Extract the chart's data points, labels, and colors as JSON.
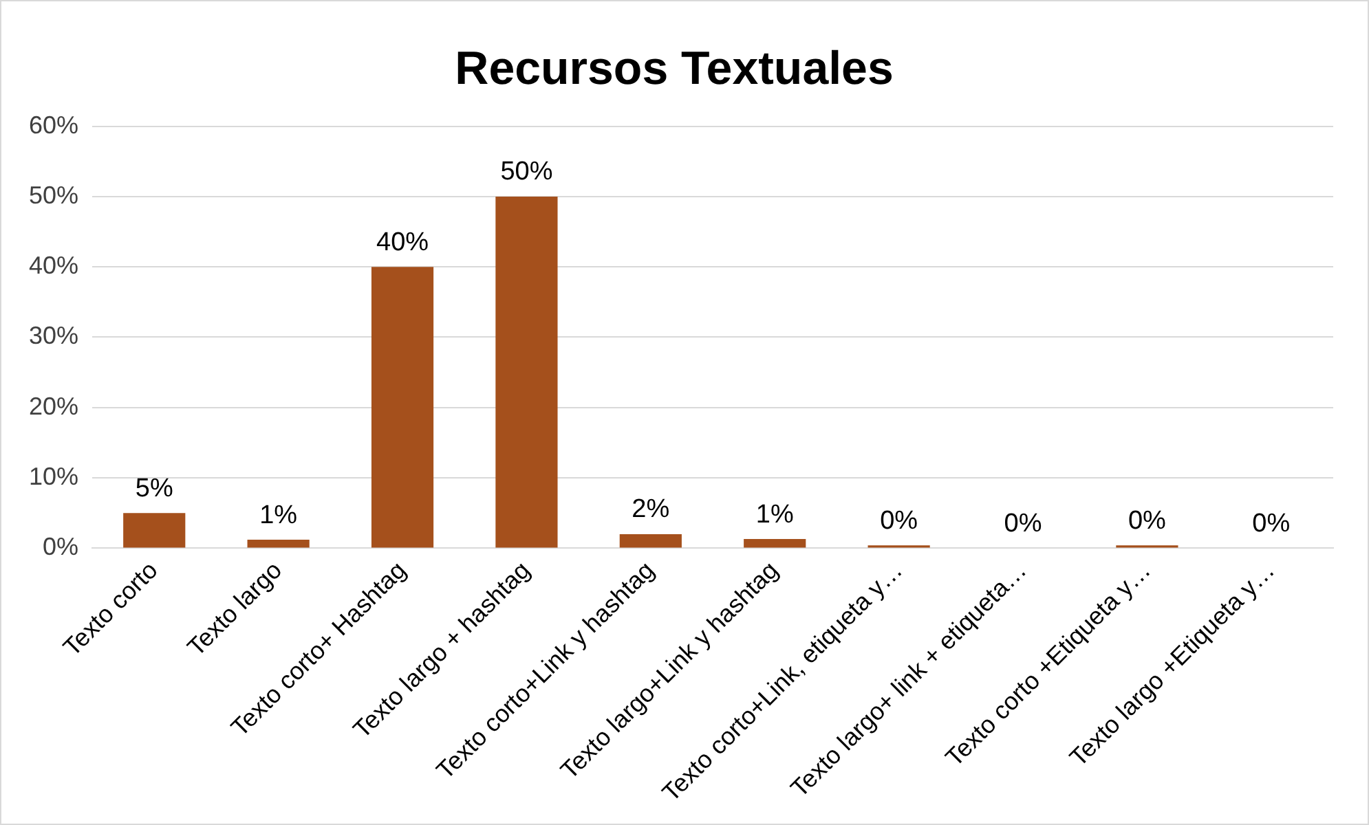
{
  "chart_data": {
    "type": "bar",
    "title": "Recursos Textuales",
    "categories": [
      "Texto corto",
      "Texto largo",
      "Texto corto+ Hashtag",
      "Texto largo + hashtag",
      "Texto corto+Link y hashtag",
      "Texto largo+Link y hashtag",
      "Texto corto+Link, etiqueta y…",
      "Texto largo+ link + etiqueta…",
      "Texto corto +Etiqueta y…",
      "Texto largo +Etiqueta y…"
    ],
    "values": [
      5,
      1.2,
      40,
      50,
      2,
      1.3,
      0.4,
      0,
      0.4,
      0
    ],
    "value_labels": [
      "5%",
      "1%",
      "40%",
      "50%",
      "2%",
      "1%",
      "0%",
      "0%",
      "0%",
      "0%"
    ],
    "color": "#a5501c",
    "ylim": [
      0,
      60
    ],
    "yticks": [
      {
        "value": 0,
        "label": "0%"
      },
      {
        "value": 10,
        "label": "10%"
      },
      {
        "value": 20,
        "label": "20%"
      },
      {
        "value": 30,
        "label": "30%"
      },
      {
        "value": 40,
        "label": "40%"
      },
      {
        "value": 50,
        "label": "50%"
      },
      {
        "value": 60,
        "label": "60%"
      }
    ],
    "grid": "y",
    "legend": false
  }
}
